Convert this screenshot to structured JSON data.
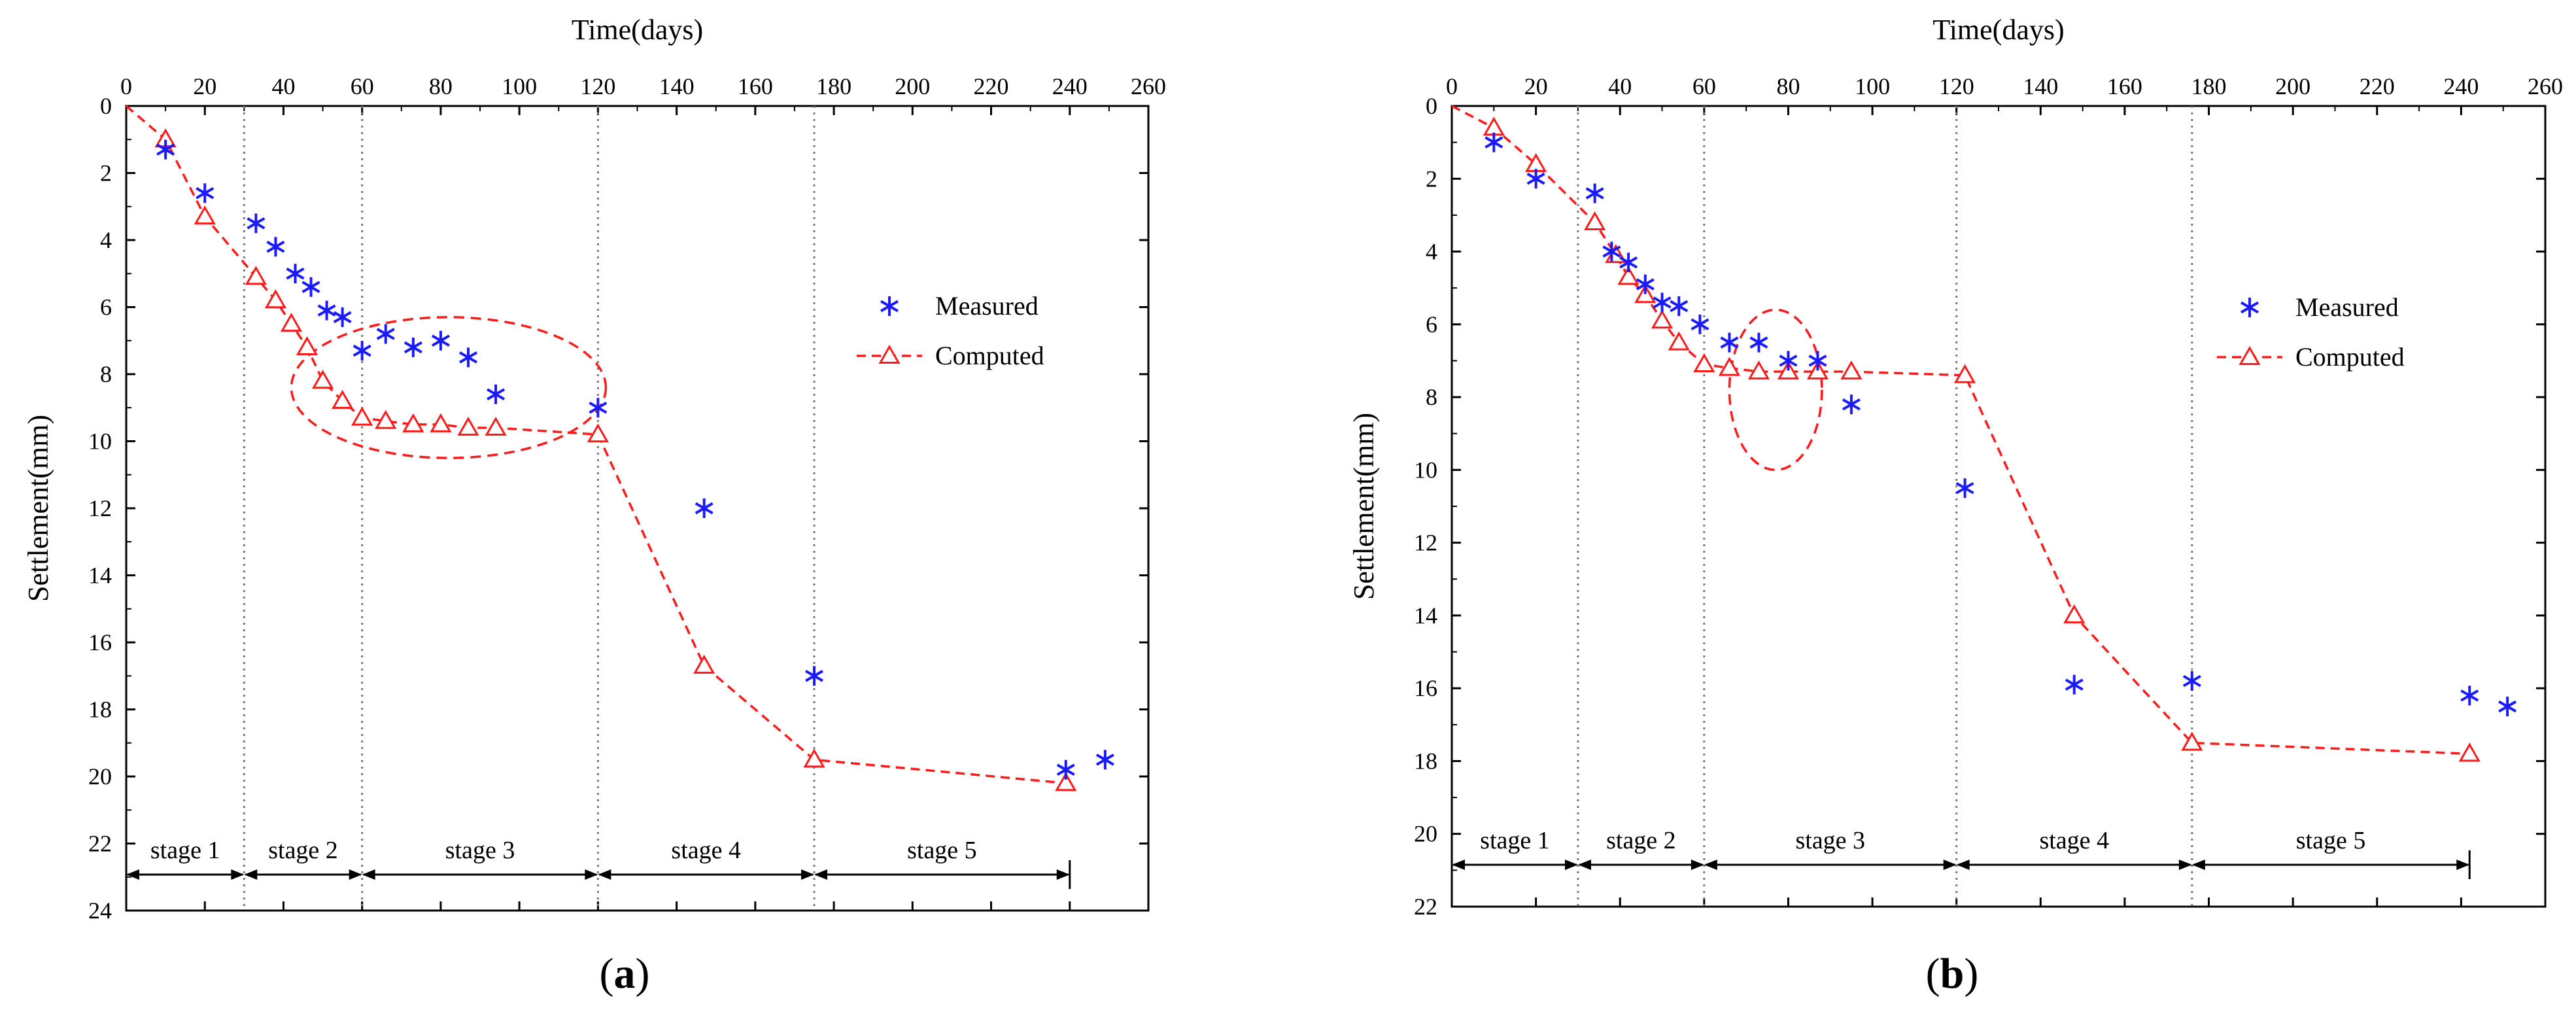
{
  "chart_data": [
    {
      "type": "scatter+line",
      "panel_label": "a",
      "xlabel": "Time(days)",
      "ylabel": "Settlement(mm)",
      "xlim": [
        0,
        260
      ],
      "ylim": [
        0,
        24
      ],
      "y_inverted": true,
      "x_axis_position": "top",
      "xticks": [
        "0",
        "20",
        "40",
        "60",
        "80",
        "100",
        "120",
        "140",
        "160",
        "180",
        "200",
        "220",
        "240",
        "260"
      ],
      "yticks": [
        "0",
        "2",
        "4",
        "6",
        "8",
        "10",
        "12",
        "14",
        "16",
        "18",
        "20",
        "22",
        "24"
      ],
      "stage_dividers": [
        30,
        60,
        120,
        175
      ],
      "stages": [
        {
          "label": "stage 1",
          "from": 0,
          "to": 30
        },
        {
          "label": "stage 2",
          "from": 30,
          "to": 60
        },
        {
          "label": "stage 3",
          "from": 60,
          "to": 120
        },
        {
          "label": "stage 4",
          "from": 120,
          "to": 175
        },
        {
          "label": "stage 5",
          "from": 175,
          "to": 240
        }
      ],
      "legend": {
        "position": "right",
        "measured": "Measured",
        "computed": "Computed"
      },
      "colors": {
        "measured": "#1a1aff",
        "computed": "#ff1a1a"
      },
      "series": [
        {
          "name": "Measured",
          "style": "asterisk",
          "x": [
            10,
            20,
            33,
            38,
            43,
            47,
            51,
            55,
            60,
            66,
            73,
            80,
            87,
            94,
            120,
            147,
            175,
            239,
            249
          ],
          "y": [
            1.3,
            2.6,
            3.5,
            4.2,
            5.0,
            5.4,
            6.1,
            6.3,
            7.3,
            6.8,
            7.2,
            7.0,
            7.5,
            8.6,
            9.0,
            12.0,
            17.0,
            19.8,
            19.5
          ]
        },
        {
          "name": "Computed",
          "style": "triangle-dashed",
          "x": [
            0,
            10,
            20,
            33,
            38,
            42,
            46,
            50,
            55,
            60,
            66,
            73,
            80,
            87,
            94,
            120,
            147,
            175,
            239
          ],
          "y": [
            0,
            1.0,
            3.3,
            5.1,
            5.8,
            6.5,
            7.2,
            8.2,
            8.8,
            9.3,
            9.4,
            9.5,
            9.5,
            9.6,
            9.6,
            9.8,
            16.7,
            19.5,
            20.2
          ]
        }
      ],
      "annotations": [
        {
          "type": "dashed-ellipse",
          "cx": 82,
          "cy": 8.4,
          "rx": 40,
          "ry": 2.1
        }
      ]
    },
    {
      "type": "scatter+line",
      "panel_label": "b",
      "xlabel": "Time(days)",
      "ylabel": "Settlement(mm)",
      "xlim": [
        0,
        260
      ],
      "ylim": [
        0,
        22
      ],
      "y_inverted": true,
      "x_axis_position": "top",
      "xticks": [
        "0",
        "20",
        "40",
        "60",
        "80",
        "100",
        "120",
        "140",
        "160",
        "180",
        "200",
        "220",
        "240",
        "260"
      ],
      "yticks": [
        "0",
        "2",
        "4",
        "6",
        "8",
        "10",
        "12",
        "14",
        "16",
        "18",
        "20",
        "22"
      ],
      "stage_dividers": [
        30,
        60,
        120,
        176
      ],
      "stages": [
        {
          "label": "stage 1",
          "from": 0,
          "to": 30
        },
        {
          "label": "stage 2",
          "from": 30,
          "to": 60
        },
        {
          "label": "stage 3",
          "from": 60,
          "to": 120
        },
        {
          "label": "stage 4",
          "from": 120,
          "to": 176
        },
        {
          "label": "stage 5",
          "from": 176,
          "to": 242
        }
      ],
      "legend": {
        "position": "right",
        "measured": "Measured",
        "computed": "Computed"
      },
      "colors": {
        "measured": "#1a1aff",
        "computed": "#ff1a1a"
      },
      "series": [
        {
          "name": "Measured",
          "style": "asterisk",
          "x": [
            10,
            20,
            34,
            38,
            42,
            46,
            50,
            54,
            59,
            66,
            73,
            80,
            87,
            95,
            122,
            148,
            176,
            242,
            251
          ],
          "y": [
            1.0,
            2.0,
            2.4,
            4.0,
            4.3,
            4.9,
            5.4,
            5.5,
            6.0,
            6.5,
            6.5,
            7.0,
            7.0,
            8.2,
            10.5,
            15.9,
            15.8,
            16.2,
            16.5
          ]
        },
        {
          "name": "Computed",
          "style": "triangle-dashed",
          "x": [
            0,
            10,
            20,
            34,
            39,
            42,
            46,
            50,
            54,
            60,
            66,
            73,
            80,
            87,
            95,
            122,
            148,
            176,
            242
          ],
          "y": [
            0,
            0.6,
            1.6,
            3.2,
            4.1,
            4.7,
            5.2,
            5.9,
            6.5,
            7.1,
            7.2,
            7.3,
            7.3,
            7.3,
            7.3,
            7.4,
            14.0,
            17.5,
            17.8
          ]
        }
      ],
      "annotations": [
        {
          "type": "dashed-ellipse",
          "cx": 77,
          "cy": 7.8,
          "rx": 11,
          "ry": 2.2
        }
      ]
    }
  ]
}
